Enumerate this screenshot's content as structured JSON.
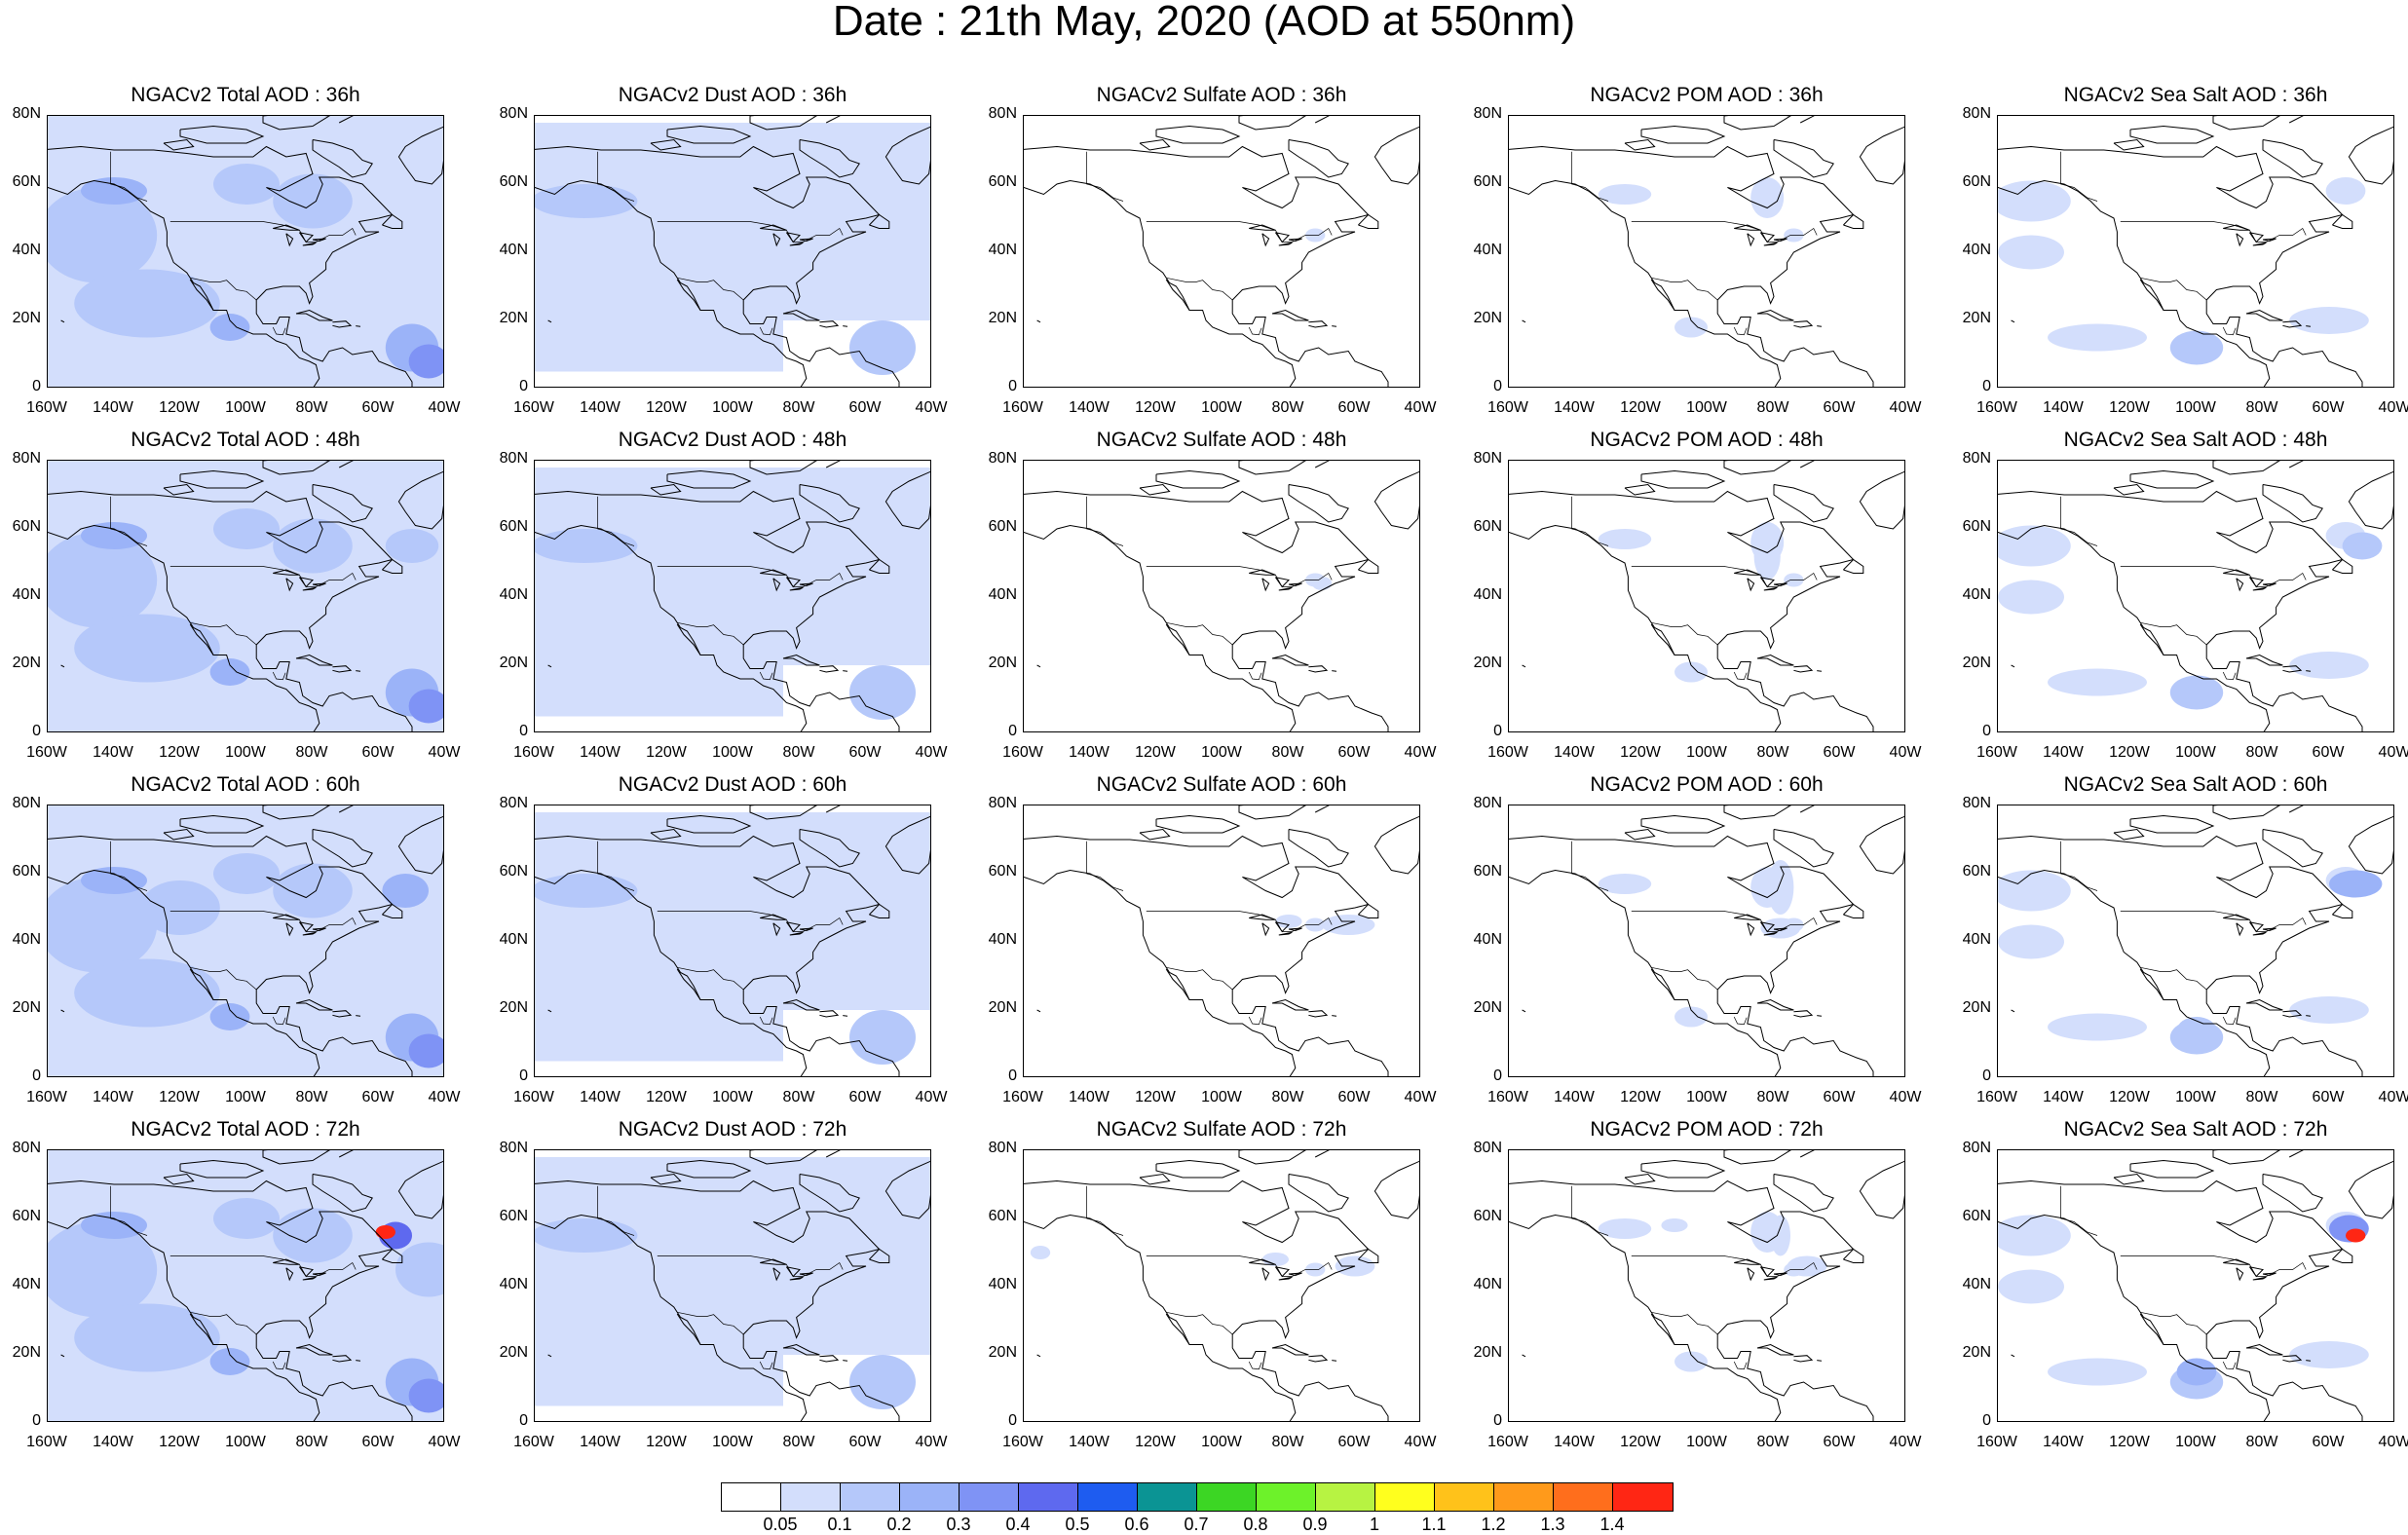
{
  "title": "Date : 21th May, 2020 (AOD at 550nm)",
  "columns": [
    {
      "key": "total",
      "label": "NGACv2 Total AOD"
    },
    {
      "key": "dust",
      "label": "NGACv2 Dust AOD"
    },
    {
      "key": "sulfate",
      "label": "NGACv2 Sulfate AOD"
    },
    {
      "key": "pom",
      "label": "NGACv2 POM AOD"
    },
    {
      "key": "seasalt",
      "label": "NGACv2 Sea Salt AOD"
    }
  ],
  "panel_titles": [
    [
      "NGACv2 Total AOD : 36h",
      "NGACv2 Dust AOD : 36h",
      "NGACv2 Sulfate AOD : 36h",
      "NGACv2 POM AOD : 36h",
      "NGACv2 Sea Salt AOD : 36h"
    ],
    [
      "NGACv2 Total AOD : 48h",
      "NGACv2 Dust AOD : 48h",
      "NGACv2 Sulfate AOD : 48h",
      "NGACv2 POM AOD : 48h",
      "NGACv2 Sea Salt AOD : 48h"
    ],
    [
      "NGACv2 Total AOD : 60h",
      "NGACv2 Dust AOD : 60h",
      "NGACv2 Sulfate AOD : 60h",
      "NGACv2 POM AOD : 60h",
      "NGACv2 Sea Salt AOD : 60h"
    ],
    [
      "NGACv2 Total AOD : 72h",
      "NGACv2 Dust AOD : 72h",
      "NGACv2 Sulfate AOD : 72h",
      "NGACv2 POM AOD : 72h",
      "NGACv2 Sea Salt  AOD : 72h"
    ]
  ],
  "lead_times": [
    "36h",
    "48h",
    "60h",
    "72h"
  ],
  "y_ticks": [
    "80N",
    "60N",
    "40N",
    "20N",
    "0"
  ],
  "x_ticks": [
    "160W",
    "140W",
    "120W",
    "100W",
    "80W",
    "60W",
    "40W"
  ],
  "colorbar": {
    "labels": [
      "0.05",
      "0.1",
      "0.2",
      "0.3",
      "0.4",
      "0.5",
      "0.6",
      "0.7",
      "0.8",
      "0.9",
      "1",
      "1.1",
      "1.2",
      "1.3",
      "1.4"
    ],
    "colors": [
      "#ffffff",
      "#d3defc",
      "#b5c8fa",
      "#9bb3f8",
      "#7f93f5",
      "#5e69ef",
      "#1e5cf0",
      "#0b9494",
      "#3cd624",
      "#6df22a",
      "#b7f342",
      "#ffff1e",
      "#ffc21a",
      "#ff9a1b",
      "#ff6e1c",
      "#ff2614"
    ]
  },
  "map_style": {
    "land_line": "#000000",
    "aod_levels": {
      "l1": "#d3defc",
      "l2": "#b5c8fa",
      "l3": "#9bb3f8",
      "l4": "#7f93f5",
      "l5": "#5e69ef",
      "l6": "#ff2614"
    }
  }
}
